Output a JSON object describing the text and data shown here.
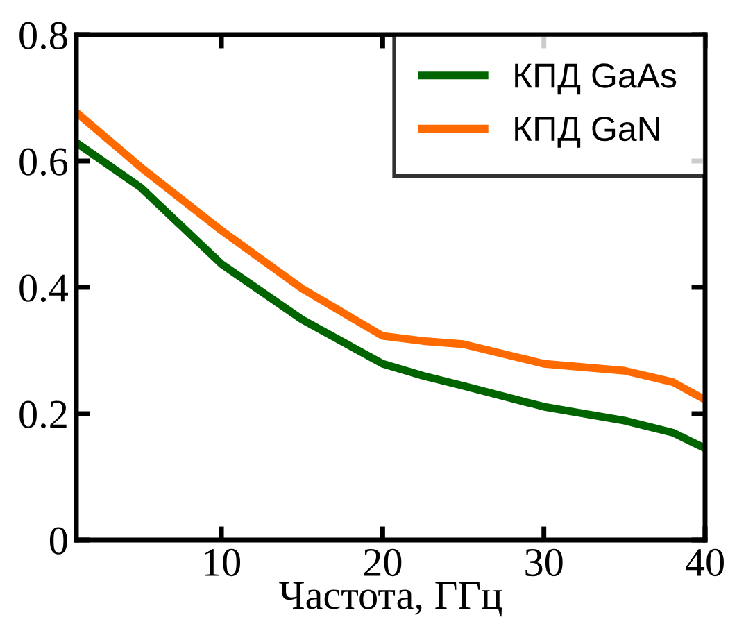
{
  "chart_data": {
    "type": "line",
    "xlabel": "Частота, ГГц",
    "xlim": [
      1,
      40
    ],
    "ylim": [
      0,
      0.8
    ],
    "xticks": [
      10,
      20,
      30,
      40
    ],
    "yticks": [
      0,
      0.2,
      0.4,
      0.6,
      0.8
    ],
    "grid": false,
    "legend": "top right",
    "marker": "none",
    "line_style": "solid",
    "series": [
      {
        "name": "КПД GaAs",
        "color": "#006400",
        "x": [
          1,
          5,
          10,
          15,
          20,
          22.5,
          25,
          30,
          35,
          38,
          40
        ],
        "values": [
          0.629,
          0.558,
          0.437,
          0.349,
          0.279,
          0.26,
          0.244,
          0.211,
          0.189,
          0.17,
          0.145
        ]
      },
      {
        "name": "КПД GaN",
        "color": "#ff6a00",
        "x": [
          1,
          5,
          10,
          15,
          20,
          22.5,
          25,
          30,
          35,
          38,
          40
        ],
        "values": [
          0.677,
          0.59,
          0.49,
          0.398,
          0.323,
          0.315,
          0.31,
          0.279,
          0.268,
          0.25,
          0.222
        ]
      }
    ]
  }
}
